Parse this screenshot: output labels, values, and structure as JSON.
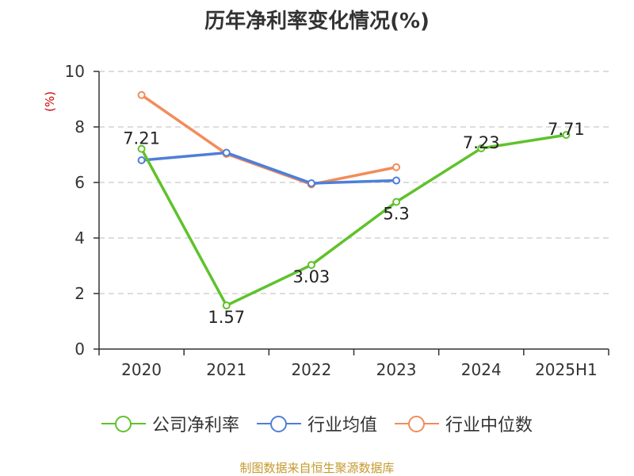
{
  "title": "历年净利率变化情况(%)",
  "source": "制图数据来自恒生聚源数据库",
  "chart_data": {
    "type": "line",
    "title": "历年净利率变化情况(%)",
    "ylabel": "(%)",
    "ylim": [
      0,
      10
    ],
    "yticks": [
      0,
      2,
      4,
      6,
      8,
      10
    ],
    "grid": true,
    "legend_position": "bottom",
    "categories": [
      "2020",
      "2021",
      "2022",
      "2023",
      "2024",
      "2025H1"
    ],
    "series": [
      {
        "name": "公司净利率",
        "color": "#5fc22b",
        "values": [
          7.21,
          1.57,
          3.03,
          5.3,
          7.23,
          7.71
        ],
        "labels": [
          "7.21",
          "1.57",
          "3.03",
          "5.3",
          "7.23",
          "7.71"
        ]
      },
      {
        "name": "行业均值",
        "color": "#4e7fd8",
        "values": [
          6.8,
          7.07,
          5.97,
          6.07,
          null,
          null
        ]
      },
      {
        "name": "行业中位数",
        "color": "#f28c5a",
        "values": [
          9.15,
          7.03,
          5.93,
          6.55,
          null,
          null
        ]
      }
    ]
  }
}
